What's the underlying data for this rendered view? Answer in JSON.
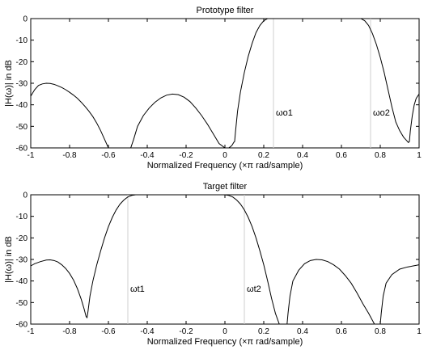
{
  "chart_data": [
    {
      "type": "line",
      "title": "Prototype filter",
      "xlabel": "Normalized Frequency  (×π rad/sample)",
      "ylabel": "|H(ω)| in dB",
      "xlim": [
        -1,
        1
      ],
      "ylim": [
        -60,
        0
      ],
      "xticks": [
        "-1",
        "-0.8",
        "-0.6",
        "-0.4",
        "-0.2",
        "0",
        "0.2",
        "0.4",
        "0.6",
        "0.8",
        "1"
      ],
      "yticks": [
        "0",
        "-10",
        "-20",
        "-30",
        "-40",
        "-50",
        "-60"
      ],
      "markers": [
        {
          "label": "ωo1",
          "x": 0.25
        },
        {
          "label": "ωo2",
          "x": 0.75
        }
      ],
      "series": [
        {
          "x": [
            -1,
            -0.98,
            -0.96,
            -0.94,
            -0.92,
            -0.9,
            -0.88,
            -0.86,
            -0.84,
            -0.82,
            -0.8,
            -0.78,
            -0.76,
            -0.74,
            -0.72,
            -0.7,
            -0.68,
            -0.66,
            -0.64,
            -0.62,
            -0.6,
            -0.58,
            -0.56,
            -0.54,
            -0.52,
            -0.505,
            -0.495,
            -0.49,
            -0.485,
            -0.47,
            -0.45,
            -0.42,
            -0.39,
            -0.36,
            -0.33,
            -0.3,
            -0.27,
            -0.24,
            -0.21,
            -0.18,
            -0.15,
            -0.12,
            -0.09,
            -0.06,
            -0.03,
            0,
            0.02,
            0.035,
            0.045,
            0.05,
            0.055,
            0.065,
            0.08,
            0.1,
            0.12,
            0.14,
            0.16,
            0.18,
            0.2,
            0.22,
            0.24,
            0.26,
            0.28,
            0.3,
            0.35,
            0.4,
            0.5,
            0.6,
            0.65,
            0.7,
            0.72,
            0.74,
            0.76,
            0.78,
            0.8,
            0.82,
            0.84,
            0.86,
            0.88,
            0.9,
            0.92,
            0.935,
            0.945,
            0.95,
            0.955,
            0.965,
            0.975,
            0.985,
            1
          ],
          "y": [
            -36,
            -33,
            -31,
            -30.3,
            -30,
            -30.1,
            -30.5,
            -31.2,
            -32,
            -33,
            -34.2,
            -35.5,
            -37,
            -38.8,
            -40.8,
            -43,
            -45.5,
            -48.5,
            -52,
            -56,
            -60,
            -60,
            -60,
            -60,
            -60,
            -60,
            -60,
            -60,
            -60,
            -56,
            -50,
            -45,
            -41.5,
            -38.8,
            -36.8,
            -35.5,
            -35,
            -35.3,
            -36.5,
            -38.5,
            -41.5,
            -45,
            -49,
            -53.5,
            -58,
            -60,
            -60,
            -59,
            -57.5,
            -57,
            -52,
            -43,
            -34,
            -25,
            -17.5,
            -11.5,
            -6.5,
            -3.2,
            -1,
            0,
            0,
            0,
            0,
            0,
            0,
            0,
            0,
            0,
            0,
            0,
            -1,
            -3.2,
            -7,
            -12,
            -18,
            -25,
            -33,
            -41,
            -48,
            -52,
            -55,
            -56.5,
            -57.5,
            -57,
            -52,
            -45,
            -40,
            -37,
            -35
          ]
        }
      ]
    },
    {
      "type": "line",
      "title": "Target filter",
      "xlabel": "Normalized Frequency  (×π rad/sample)",
      "ylabel": "|H(ω)| in dB",
      "xlim": [
        -1,
        1
      ],
      "ylim": [
        -60,
        0
      ],
      "xticks": [
        "-1",
        "-0.8",
        "-0.6",
        "-0.4",
        "-0.2",
        "0",
        "0.2",
        "0.4",
        "0.6",
        "0.8",
        "1"
      ],
      "yticks": [
        "0",
        "-10",
        "-20",
        "-30",
        "-40",
        "-50",
        "-60"
      ],
      "markers": [
        {
          "label": "ωt1",
          "x": -0.5
        },
        {
          "label": "ωt2",
          "x": 0.1
        }
      ],
      "series": [
        {
          "x": [
            -1,
            -0.98,
            -0.95,
            -0.92,
            -0.9,
            -0.88,
            -0.86,
            -0.84,
            -0.82,
            -0.8,
            -0.78,
            -0.76,
            -0.74,
            -0.725,
            -0.715,
            -0.71,
            -0.705,
            -0.695,
            -0.68,
            -0.66,
            -0.64,
            -0.62,
            -0.6,
            -0.58,
            -0.56,
            -0.54,
            -0.52,
            -0.5,
            -0.48,
            -0.46,
            -0.44,
            -0.42,
            -0.4,
            -0.3,
            -0.2,
            -0.1,
            0,
            0.02,
            0.04,
            0.06,
            0.08,
            0.1,
            0.12,
            0.14,
            0.16,
            0.18,
            0.2,
            0.22,
            0.24,
            0.26,
            0.28,
            0.3,
            0.31,
            0.315,
            0.32,
            0.325,
            0.335,
            0.35,
            0.38,
            0.41,
            0.44,
            0.47,
            0.5,
            0.53,
            0.56,
            0.59,
            0.62,
            0.65,
            0.68,
            0.71,
            0.74,
            0.77,
            0.785,
            0.795,
            0.8,
            0.805,
            0.815,
            0.83,
            0.86,
            0.9,
            0.94,
            0.97,
            1
          ],
          "y": [
            -33,
            -32,
            -31,
            -30.3,
            -30.2,
            -30.5,
            -31.2,
            -32.5,
            -34.2,
            -36.5,
            -39.5,
            -43.5,
            -48.5,
            -53,
            -56.5,
            -57,
            -54,
            -47,
            -40,
            -32.5,
            -26,
            -20,
            -14.8,
            -10.5,
            -7,
            -4.3,
            -2.4,
            -1,
            -0.3,
            0,
            0,
            0,
            0,
            0,
            0,
            0,
            0,
            -0.3,
            -1,
            -2.4,
            -4.3,
            -7,
            -10.5,
            -14.8,
            -20,
            -26,
            -32.5,
            -40,
            -48,
            -55,
            -60,
            -60,
            -60,
            -60,
            -60,
            -55,
            -47,
            -40,
            -35,
            -32,
            -30.5,
            -30,
            -30.2,
            -31,
            -32.5,
            -34.5,
            -37.5,
            -41,
            -45.5,
            -50.5,
            -55,
            -60,
            -60,
            -60,
            -60,
            -55,
            -47,
            -41,
            -37,
            -34.5,
            -33.5,
            -33,
            -32.5
          ]
        }
      ]
    }
  ]
}
